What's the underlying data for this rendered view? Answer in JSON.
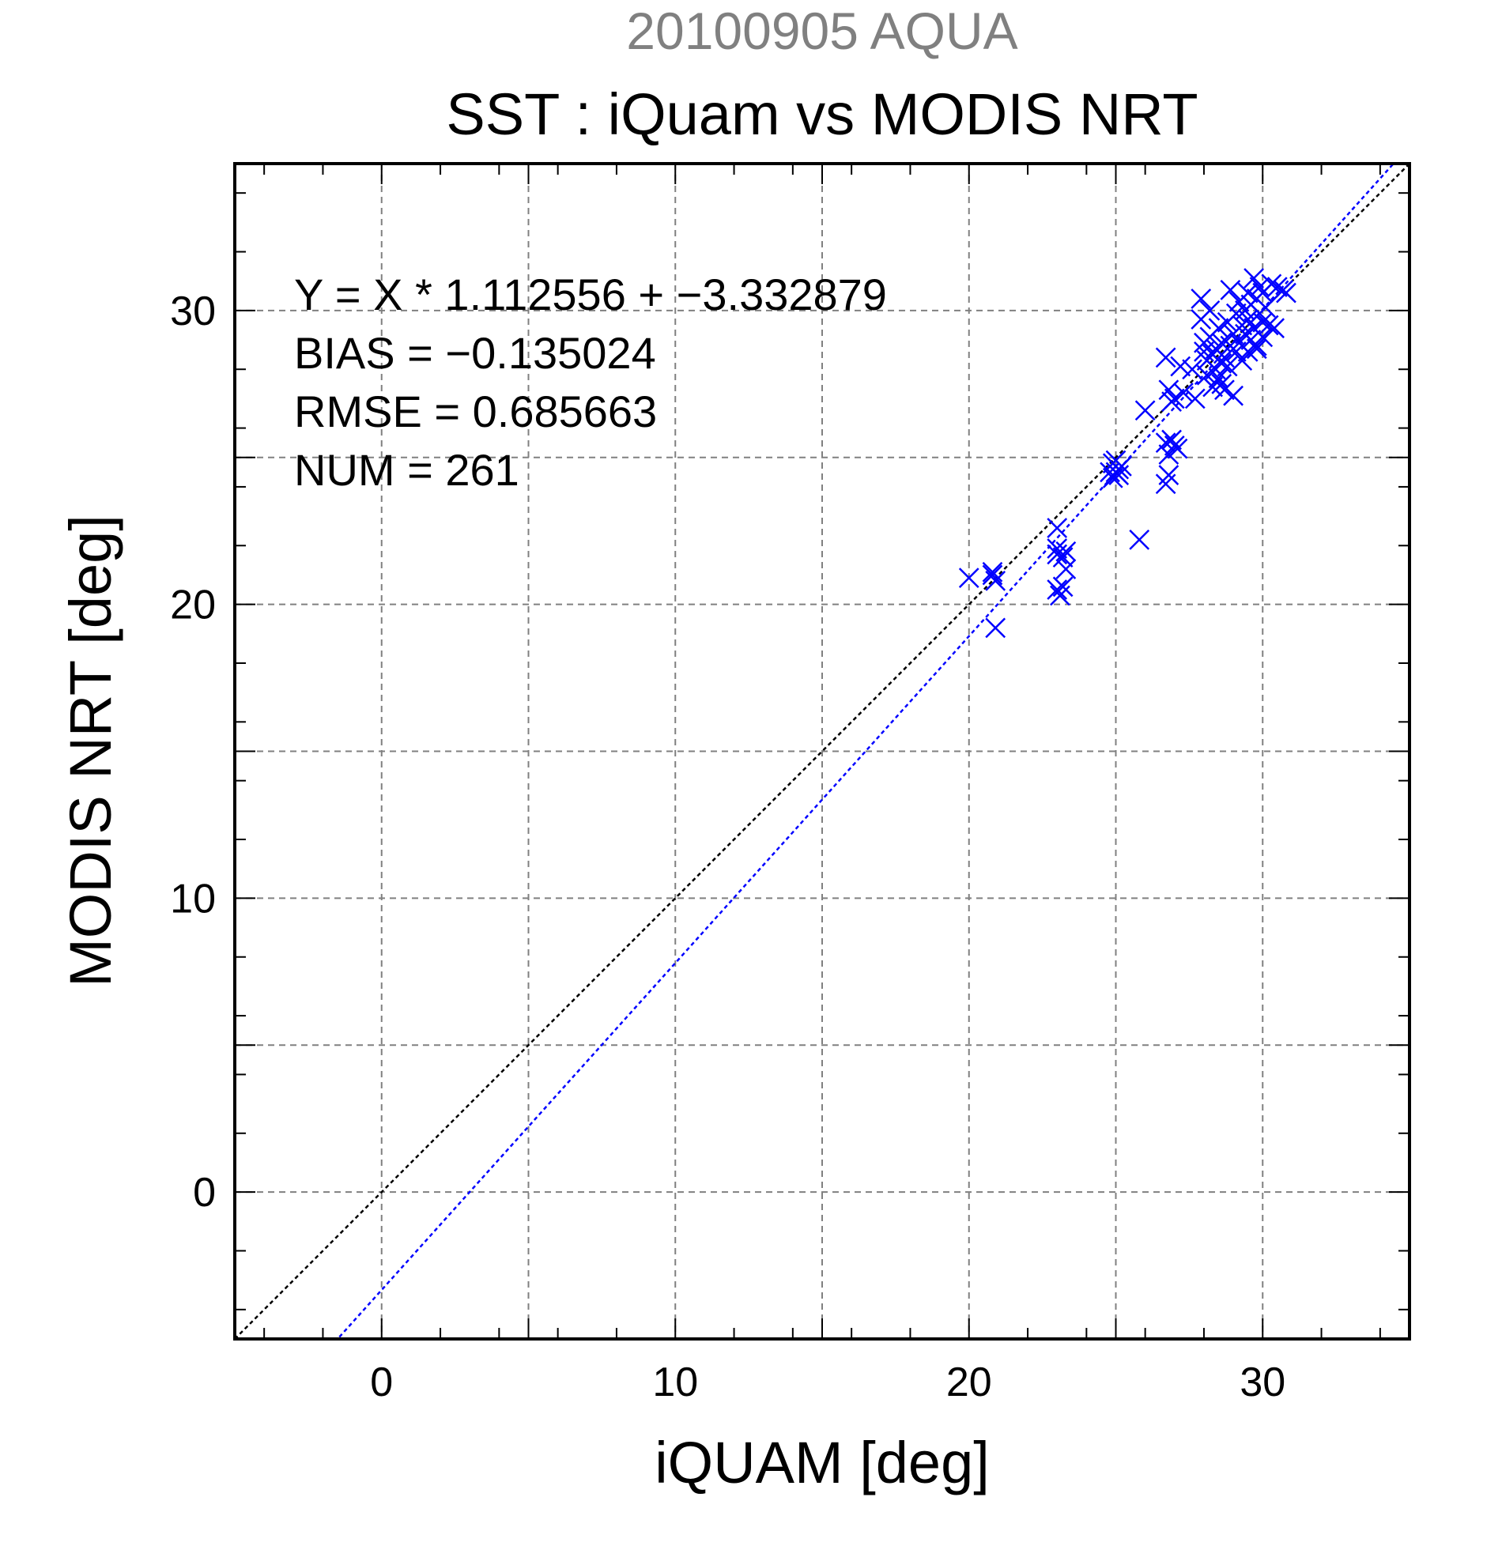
{
  "chart_data": {
    "type": "scatter",
    "supertitle": "20100905 AQUA",
    "title": "SST : iQuam vs MODIS NRT",
    "xlabel": "iQUAM [deg]",
    "ylabel": "MODIS NRT [deg]",
    "xlim": [
      -5,
      35
    ],
    "ylim": [
      -5,
      35
    ],
    "x_ticks": [
      0,
      10,
      20,
      30
    ],
    "y_ticks": [
      0,
      10,
      20,
      30
    ],
    "x_tick_labels": [
      "0",
      "10",
      "20",
      "30"
    ],
    "y_tick_labels": [
      "0",
      "10",
      "20",
      "30"
    ],
    "grid": true,
    "grid_step": 5,
    "marker": "x",
    "colors": {
      "points": "#0000ff",
      "fit_line": "#0000ff",
      "identity_line": "#000000",
      "supertitle": "#808080",
      "grid": "#808080"
    },
    "annotations": [
      "Y = X * 1.112556 + −3.332879",
      "BIAS = −0.135024",
      "RMSE = 0.685663",
      "NUM = 261"
    ],
    "fit": {
      "slope": 1.112556,
      "intercept": -3.332879
    },
    "identity": {
      "slope": 1,
      "intercept": 0
    },
    "points": [
      [
        20.0,
        20.9
      ],
      [
        20.8,
        21.0
      ],
      [
        20.9,
        20.8
      ],
      [
        20.9,
        19.2
      ],
      [
        20.8,
        21.1
      ],
      [
        23.0,
        22.6
      ],
      [
        23.0,
        21.9
      ],
      [
        23.2,
        21.6
      ],
      [
        23.3,
        21.2
      ],
      [
        23.0,
        20.5
      ],
      [
        23.1,
        20.3
      ],
      [
        23.0,
        21.7
      ],
      [
        23.3,
        21.8
      ],
      [
        23.2,
        20.6
      ],
      [
        24.9,
        24.8
      ],
      [
        25.0,
        24.5
      ],
      [
        25.1,
        24.4
      ],
      [
        24.9,
        24.3
      ],
      [
        25.2,
        24.7
      ],
      [
        25.0,
        24.9
      ],
      [
        24.8,
        24.5
      ],
      [
        25.1,
        24.6
      ],
      [
        25.8,
        22.2
      ],
      [
        26.0,
        26.6
      ],
      [
        26.7,
        28.4
      ],
      [
        26.8,
        27.3
      ],
      [
        26.9,
        26.9
      ],
      [
        27.0,
        27.0
      ],
      [
        26.7,
        25.5
      ],
      [
        26.8,
        24.4
      ],
      [
        26.7,
        24.1
      ],
      [
        27.0,
        25.4
      ],
      [
        27.1,
        25.3
      ],
      [
        26.9,
        25.6
      ],
      [
        26.8,
        25.1
      ],
      [
        27.2,
        28.1
      ],
      [
        27.3,
        27.2
      ],
      [
        27.6,
        28.0
      ],
      [
        27.7,
        27.0
      ],
      [
        27.9,
        30.4
      ],
      [
        27.9,
        29.7
      ],
      [
        28.0,
        28.6
      ],
      [
        28.0,
        28.9
      ],
      [
        28.1,
        27.8
      ],
      [
        28.1,
        28.3
      ],
      [
        28.2,
        29.1
      ],
      [
        28.2,
        30.0
      ],
      [
        28.3,
        27.4
      ],
      [
        28.3,
        28.5
      ],
      [
        28.4,
        28.0
      ],
      [
        28.4,
        28.7
      ],
      [
        28.5,
        29.4
      ],
      [
        28.5,
        27.7
      ],
      [
        28.6,
        28.2
      ],
      [
        28.6,
        28.9
      ],
      [
        28.7,
        27.3
      ],
      [
        28.7,
        28.4
      ],
      [
        28.8,
        29.6
      ],
      [
        28.8,
        28.1
      ],
      [
        28.9,
        30.7
      ],
      [
        28.9,
        28.8
      ],
      [
        29.0,
        27.1
      ],
      [
        29.0,
        29.2
      ],
      [
        29.1,
        28.6
      ],
      [
        29.1,
        29.9
      ],
      [
        29.2,
        28.9
      ],
      [
        29.2,
        30.3
      ],
      [
        29.3,
        29.5
      ],
      [
        29.3,
        28.3
      ],
      [
        29.4,
        30.0
      ],
      [
        29.4,
        29.2
      ],
      [
        29.5,
        30.6
      ],
      [
        29.5,
        29.7
      ],
      [
        29.6,
        29.0
      ],
      [
        29.6,
        30.2
      ],
      [
        29.7,
        31.1
      ],
      [
        29.7,
        29.4
      ],
      [
        29.8,
        30.4
      ],
      [
        29.8,
        28.7
      ],
      [
        29.9,
        29.9
      ],
      [
        29.9,
        30.8
      ],
      [
        30.0,
        29.6
      ],
      [
        30.0,
        29.1
      ],
      [
        30.1,
        30.1
      ],
      [
        30.2,
        29.5
      ],
      [
        30.3,
        30.9
      ],
      [
        30.5,
        30.8
      ],
      [
        30.7,
        30.7
      ],
      [
        30.8,
        30.6
      ],
      [
        30.4,
        29.4
      ],
      [
        29.5,
        28.6
      ],
      [
        28.6,
        27.5
      ],
      [
        29.8,
        28.8
      ],
      [
        30.0,
        30.6
      ]
    ]
  }
}
